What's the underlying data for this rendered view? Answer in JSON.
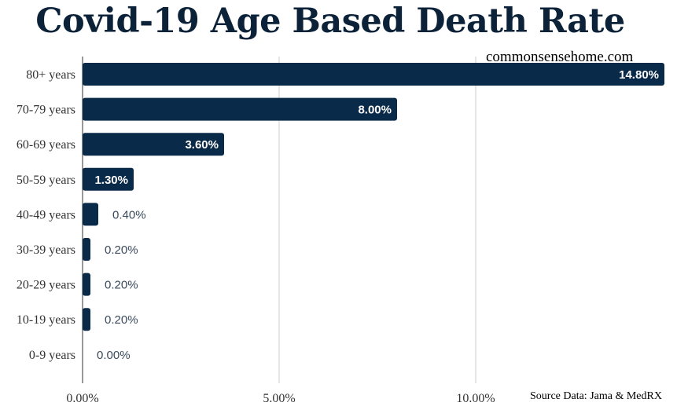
{
  "title": "Covid-19 Age Based Death Rate",
  "watermark": "commonsensehome.com",
  "source": "Source Data: Jama & MedRX",
  "colors": {
    "bar": "#092a48",
    "grid": "#cccccc",
    "title": "#0c2238"
  },
  "chart_data": {
    "type": "bar",
    "orientation": "horizontal",
    "title": "Covid-19 Age Based Death Rate",
    "categories": [
      "80+ years",
      "70-79 years",
      "60-69 years",
      "50-59 years",
      "40-49 years",
      "30-39 years",
      "20-29 years",
      "10-19 years",
      "0-9 years"
    ],
    "values": [
      14.8,
      8.0,
      3.6,
      1.3,
      0.4,
      0.2,
      0.2,
      0.2,
      0.0
    ],
    "value_labels": [
      "14.80%",
      "8.00%",
      "3.60%",
      "1.30%",
      "0.40%",
      "0.20%",
      "0.20%",
      "0.20%",
      "0.00%"
    ],
    "x_ticks": [
      0,
      5,
      10
    ],
    "x_tick_labels": [
      "0.00%",
      "5.00%",
      "10.00%"
    ],
    "xlim": [
      0,
      15
    ],
    "grid": true,
    "legend": "none"
  }
}
